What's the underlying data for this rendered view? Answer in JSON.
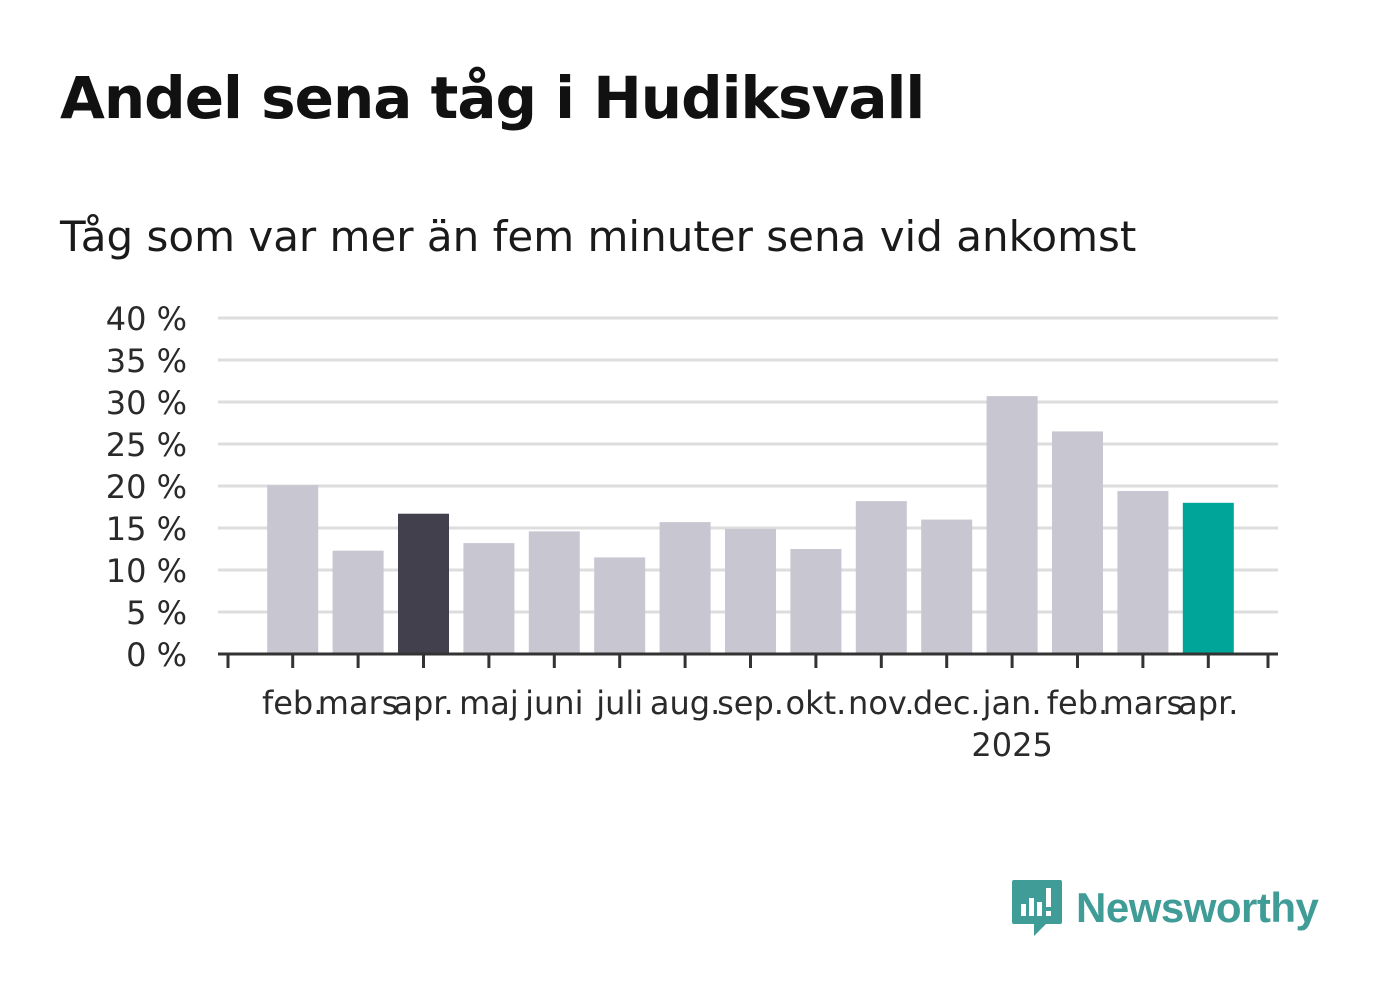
{
  "title": "Andel sena tåg i Hudiksvall",
  "subtitle": "Tåg som var mer än fem minuter sena vid ankomst",
  "brand": {
    "name": "Newsworthy",
    "color": "#3f9c96",
    "icon": "newsworthy-logo-icon"
  },
  "colors": {
    "default_bar": "#c8c6d1",
    "reference_bar": "#42404c",
    "highlight_bar": "#00a59a",
    "grid": "#dddddd",
    "axis": "#333333"
  },
  "chart_data": {
    "type": "bar",
    "title": "Andel sena tåg i Hudiksvall",
    "subtitle": "Tåg som var mer än fem minuter sena vid ankomst",
    "categories": [
      "feb.",
      "mars",
      "apr.",
      "maj",
      "juni",
      "juli",
      "aug.",
      "sep.",
      "okt.",
      "nov.",
      "dec.",
      "jan.",
      "feb.",
      "mars",
      "apr."
    ],
    "year_labels": [
      {
        "category_index": 11,
        "label": "2025"
      }
    ],
    "values": [
      20.1,
      12.3,
      16.7,
      13.2,
      14.6,
      11.5,
      15.7,
      14.9,
      12.5,
      18.2,
      16.0,
      30.7,
      26.5,
      19.4,
      18.0
    ],
    "bar_roles": [
      "default",
      "default",
      "reference",
      "default",
      "default",
      "default",
      "default",
      "default",
      "default",
      "default",
      "default",
      "default",
      "default",
      "default",
      "highlight"
    ],
    "ylim": [
      0,
      40
    ],
    "yticks": [
      0,
      5,
      10,
      15,
      20,
      25,
      30,
      35,
      40
    ],
    "ytick_labels": [
      "0 %",
      "5 %",
      "10 %",
      "15 %",
      "20 %",
      "25 %",
      "30 %",
      "35 %",
      "40 %"
    ],
    "xlabel": "",
    "ylabel": "",
    "grid": true,
    "legend": "none"
  }
}
